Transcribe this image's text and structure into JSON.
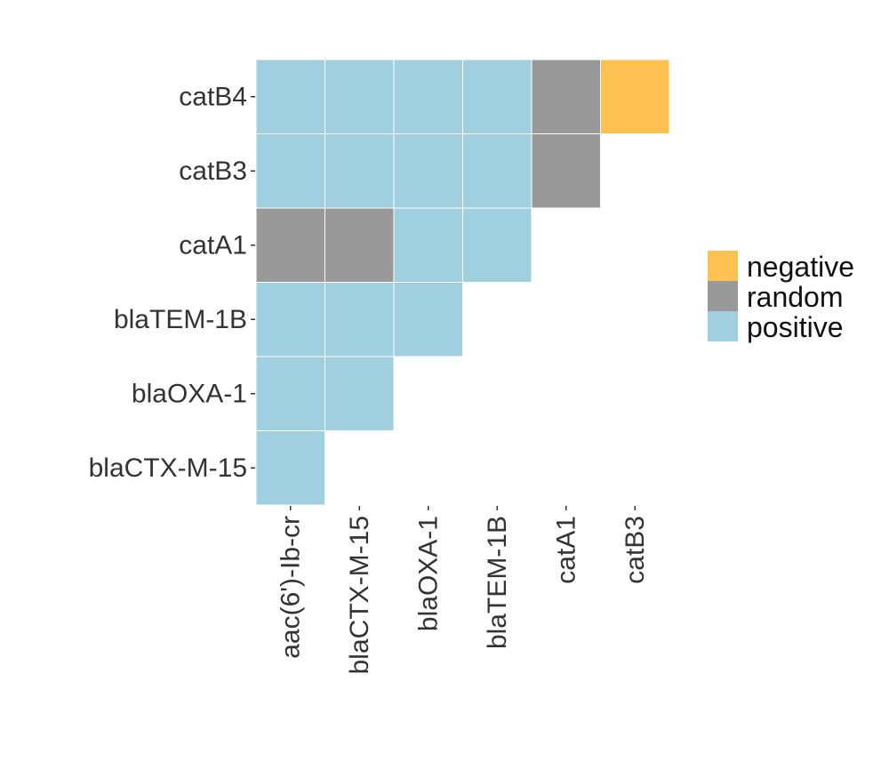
{
  "chart_data": {
    "type": "heatmap",
    "x_categories": [
      "aac(6')-Ib-cr",
      "blaCTX-M-15",
      "blaOXA-1",
      "blaTEM-1B",
      "catA1",
      "catB3"
    ],
    "y_categories": [
      "blaCTX-M-15",
      "blaOXA-1",
      "blaTEM-1B",
      "catA1",
      "catB3",
      "catB4"
    ],
    "cells": [
      {
        "x": "aac(6')-Ib-cr",
        "y": "blaCTX-M-15",
        "value": "positive"
      },
      {
        "x": "aac(6')-Ib-cr",
        "y": "blaOXA-1",
        "value": "positive"
      },
      {
        "x": "blaCTX-M-15",
        "y": "blaOXA-1",
        "value": "positive"
      },
      {
        "x": "aac(6')-Ib-cr",
        "y": "blaTEM-1B",
        "value": "positive"
      },
      {
        "x": "blaCTX-M-15",
        "y": "blaTEM-1B",
        "value": "positive"
      },
      {
        "x": "blaOXA-1",
        "y": "blaTEM-1B",
        "value": "positive"
      },
      {
        "x": "aac(6')-Ib-cr",
        "y": "catA1",
        "value": "random"
      },
      {
        "x": "blaCTX-M-15",
        "y": "catA1",
        "value": "random"
      },
      {
        "x": "blaOXA-1",
        "y": "catA1",
        "value": "positive"
      },
      {
        "x": "blaTEM-1B",
        "y": "catA1",
        "value": "positive"
      },
      {
        "x": "aac(6')-Ib-cr",
        "y": "catB3",
        "value": "positive"
      },
      {
        "x": "blaCTX-M-15",
        "y": "catB3",
        "value": "positive"
      },
      {
        "x": "blaOXA-1",
        "y": "catB3",
        "value": "positive"
      },
      {
        "x": "blaTEM-1B",
        "y": "catB3",
        "value": "positive"
      },
      {
        "x": "catA1",
        "y": "catB3",
        "value": "random"
      },
      {
        "x": "aac(6')-Ib-cr",
        "y": "catB4",
        "value": "positive"
      },
      {
        "x": "blaCTX-M-15",
        "y": "catB4",
        "value": "positive"
      },
      {
        "x": "blaOXA-1",
        "y": "catB4",
        "value": "positive"
      },
      {
        "x": "blaTEM-1B",
        "y": "catB4",
        "value": "positive"
      },
      {
        "x": "catA1",
        "y": "catB4",
        "value": "random"
      },
      {
        "x": "catB3",
        "y": "catB4",
        "value": "negative"
      }
    ],
    "legend": {
      "position": "right",
      "items": [
        {
          "label": "negative",
          "color": "#FFC152"
        },
        {
          "label": "random",
          "color": "#999999"
        },
        {
          "label": "positive",
          "color": "#A0CFDF"
        }
      ]
    },
    "grid": false
  }
}
